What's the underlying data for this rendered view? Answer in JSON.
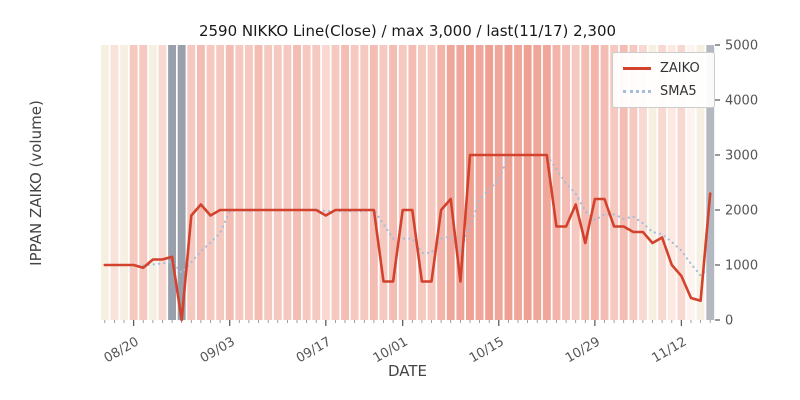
{
  "chart": {
    "title": "2590 NIKKO Line(Close) / max 3,000 / last(11/17) 2,300",
    "xlabel": "DATE",
    "ylabel": "IPPAN ZAIKO (volume)",
    "legend": {
      "zaiko": "ZAIKO",
      "sma5": "SMA5"
    }
  },
  "chart_data": {
    "type": "line",
    "title": "2590 NIKKO Line(Close) / max 3,000 / last(11/17) 2,300",
    "xlabel": "DATE",
    "ylabel": "IPPAN ZAIKO (volume)",
    "ylim": [
      0,
      5000
    ],
    "yticks": [
      0,
      1000,
      2000,
      3000,
      4000,
      5000
    ],
    "xticks": [
      "08/20",
      "09/03",
      "09/17",
      "10/01",
      "10/15",
      "10/29",
      "11/12"
    ],
    "legend_position": "upper right",
    "grid": false,
    "dates": [
      "08/17",
      "08/18",
      "08/19",
      "08/20",
      "08/23",
      "08/24",
      "08/25",
      "08/26",
      "08/27",
      "08/30",
      "08/31",
      "09/01",
      "09/02",
      "09/03",
      "09/06",
      "09/07",
      "09/08",
      "09/09",
      "09/10",
      "09/13",
      "09/14",
      "09/15",
      "09/16",
      "09/17",
      "09/21",
      "09/22",
      "09/24",
      "09/27",
      "09/28",
      "09/29",
      "09/30",
      "10/01",
      "10/04",
      "10/05",
      "10/06",
      "10/07",
      "10/08",
      "10/11",
      "10/12",
      "10/13",
      "10/14",
      "10/15",
      "10/18",
      "10/19",
      "10/20",
      "10/21",
      "10/22",
      "10/25",
      "10/26",
      "10/27",
      "10/28",
      "10/29",
      "11/01",
      "11/02",
      "11/04",
      "11/05",
      "11/08",
      "11/09",
      "11/10",
      "11/11",
      "11/12",
      "11/15",
      "11/16",
      "11/17"
    ],
    "series": [
      {
        "name": "ZAIKO",
        "style": "solid",
        "color": "#d2422c",
        "values": [
          1000,
          1000,
          1000,
          1000,
          950,
          1100,
          1100,
          1150,
          0,
          1900,
          2100,
          1900,
          2000,
          2000,
          2000,
          2000,
          2000,
          2000,
          2000,
          2000,
          2000,
          2000,
          2000,
          1900,
          2000,
          2000,
          2000,
          2000,
          2000,
          700,
          700,
          2000,
          2000,
          700,
          700,
          2000,
          2200,
          700,
          3000,
          3000,
          3000,
          3000,
          3000,
          3000,
          3000,
          3000,
          3000,
          1700,
          1700,
          2100,
          1400,
          2200,
          2200,
          1700,
          1700,
          1600,
          1600,
          1400,
          1500,
          1000,
          800,
          400,
          350,
          2300
        ]
      },
      {
        "name": "SMA5",
        "style": "dotted",
        "color": "#a3bdda",
        "values": [
          null,
          null,
          null,
          null,
          990,
          1010,
          1030,
          1060,
          860,
          1050,
          1250,
          1410,
          1580,
          1980,
          2000,
          1980,
          2000,
          2000,
          2000,
          2000,
          2000,
          2000,
          2000,
          1980,
          1980,
          1980,
          1980,
          1980,
          2000,
          1740,
          1480,
          1480,
          1480,
          1220,
          1220,
          1480,
          1520,
          1260,
          1720,
          2180,
          2380,
          2540,
          3000,
          3000,
          3000,
          3000,
          3000,
          2740,
          2480,
          2300,
          1980,
          1820,
          1920,
          1920,
          1840,
          1880,
          1760,
          1600,
          1560,
          1420,
          1260,
          1020,
          810,
          970
        ]
      }
    ],
    "band_colors": [
      "#f6f0e3",
      "#f9e2da",
      "#f6f0e3",
      "#f5c9c0",
      "#f5c9c0",
      "#f6f0e3",
      "#f8d9d1",
      "#9aa0ab",
      "#9aa0ab",
      "#f5c9c0",
      "#f3bdb3",
      "#f5c9c0",
      "#f5c9c0",
      "#f3bdb3",
      "#f5c9c0",
      "#f5c9c0",
      "#f3bdb3",
      "#f5c9c0",
      "#f5c9c0",
      "#f5c9c0",
      "#f3bdb3",
      "#f5c9c0",
      "#f5c9c0",
      "#f8d9d1",
      "#f5c9c0",
      "#f3bdb3",
      "#f5c9c0",
      "#f5c9c0",
      "#f3bdb3",
      "#f5c9c0",
      "#f3bdb3",
      "#f5c9c0",
      "#f3bdb3",
      "#f5c9c0",
      "#f5c9c0",
      "#f3b4a9",
      "#f0a79b",
      "#f0a79b",
      "#eea093",
      "#f0a79b",
      "#eea093",
      "#f0a79b",
      "#eea093",
      "#f0a79b",
      "#eea093",
      "#f0a79b",
      "#f0a79b",
      "#f3b4a9",
      "#f3bdb3",
      "#f5c9c0",
      "#f3bdb3",
      "#f3b4a9",
      "#f3bdb3",
      "#f5c9c0",
      "#f3bdb3",
      "#f5c9c0",
      "#f8d9d1",
      "#f6f0e3",
      "#f8d9d1",
      "#fbe9e2",
      "#f8d9d1",
      "#fdf4f0",
      "#f6f0e3",
      "#b4b9c1"
    ]
  }
}
